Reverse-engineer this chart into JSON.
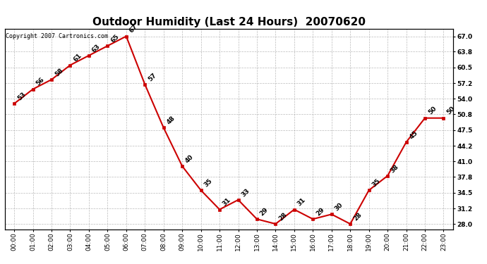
{
  "title": "Outdoor Humidity (Last 24 Hours)  20070620",
  "copyright_text": "Copyright 2007 Cartronics.com",
  "x_labels": [
    "00:00",
    "01:00",
    "02:00",
    "03:00",
    "04:00",
    "05:00",
    "06:00",
    "07:00",
    "08:00",
    "09:00",
    "10:00",
    "11:00",
    "12:00",
    "13:00",
    "14:00",
    "15:00",
    "16:00",
    "17:00",
    "18:00",
    "19:00",
    "20:00",
    "21:00",
    "22:00",
    "23:00"
  ],
  "y_values": [
    53,
    56,
    58,
    61,
    63,
    65,
    67,
    57,
    48,
    40,
    35,
    31,
    33,
    29,
    28,
    31,
    29,
    30,
    28,
    35,
    38,
    45,
    50,
    50
  ],
  "y_ticks": [
    28.0,
    31.2,
    34.5,
    37.8,
    41.0,
    44.2,
    47.5,
    50.8,
    54.0,
    57.2,
    60.5,
    63.8,
    67.0
  ],
  "ylim": [
    26.8,
    68.5
  ],
  "line_color": "#cc0000",
  "marker_color": "#cc0000",
  "background_color": "#ffffff",
  "grid_color": "#aaaaaa",
  "title_fontsize": 11,
  "tick_fontsize": 6.5,
  "annotation_fontsize": 6.5,
  "copyright_fontsize": 6
}
